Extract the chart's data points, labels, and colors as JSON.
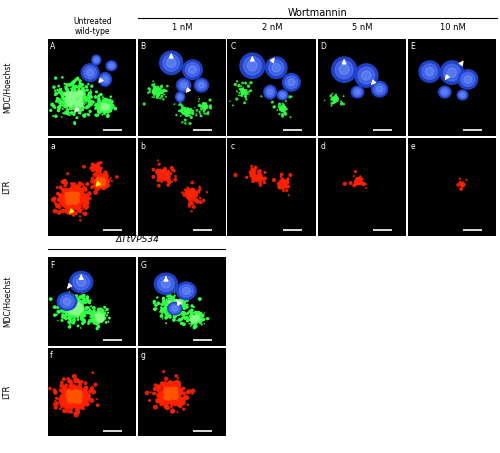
{
  "figure_width": 5.0,
  "figure_height": 4.53,
  "background_color": "#ffffff",
  "panel_bg": "#000000",
  "top_title": "Wortmannin",
  "col_headers": [
    "Untreated\nwild-type",
    "1 nM",
    "2 nM",
    "5 nM",
    "10 nM"
  ],
  "bottom_section_title": "ΔTtVPS34",
  "upper_panel_labels": [
    "A",
    "B",
    "C",
    "D",
    "E"
  ],
  "lower_panel_labels": [
    "a",
    "b",
    "c",
    "d",
    "e"
  ],
  "bottom_upper_labels": [
    "F",
    "G"
  ],
  "bottom_lower_labels": [
    "f",
    "g"
  ],
  "label_color": "#ffffff",
  "text_color": "#000000",
  "line_color": "#000000",
  "blue_nucleus_color": "#3366ff",
  "blue_nucleus_inner": "#6699ff",
  "green_dot_color": "#33ff44",
  "red_dot_color": "#ff2200",
  "yellow_arrow_color": "#ffff00",
  "white_arrow_color": "#ffffff"
}
